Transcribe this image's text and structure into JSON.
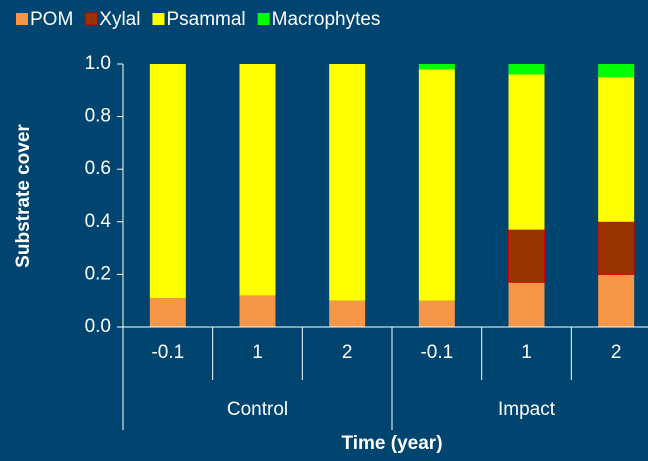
{
  "chart_data": {
    "type": "stacked_bar",
    "categories": [
      "-0.1",
      "1",
      "2",
      "-0.1",
      "1",
      "2"
    ],
    "groups": [
      "Control",
      "Impact"
    ],
    "series": [
      {
        "name": "POM",
        "color": "#f79646",
        "values": [
          0.11,
          0.12,
          0.1,
          0.1,
          0.17,
          0.2
        ]
      },
      {
        "name": "Xylal",
        "color": "#993300",
        "values": [
          0,
          0,
          0,
          0,
          0.2,
          0.2
        ]
      },
      {
        "name": "Psammal",
        "color": "#ffff00",
        "values": [
          0.89,
          0.88,
          0.9,
          0.88,
          0.59,
          0.55
        ]
      },
      {
        "name": "Macrophytes",
        "color": "#00ff00",
        "values": [
          0,
          0,
          0,
          0.02,
          0.04,
          0.05
        ]
      }
    ],
    "ylabel": "Substrate cover",
    "xlabel": "Time (year)",
    "ylim": [
      0,
      1
    ],
    "yticks": [
      {
        "value": 0,
        "label": "0.0"
      },
      0.2,
      0.4,
      0.6,
      0.8,
      {
        "value": 1,
        "label": "1.0"
      }
    ]
  }
}
